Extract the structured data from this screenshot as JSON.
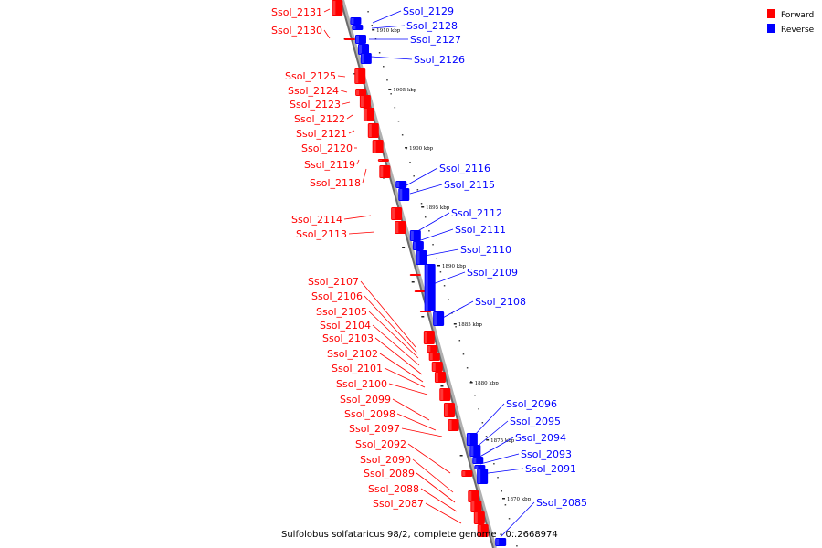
{
  "caption": "Sulfolobus solfataricus 98/2, complete genome - 0..2668974",
  "legend": [
    {
      "label": "Forward",
      "color": "#ff0000"
    },
    {
      "label": "Reverse",
      "color": "#0000ff"
    }
  ],
  "colors": {
    "forward": "#ff0000",
    "reverse": "#0000ff",
    "backbone": "#888888"
  },
  "scale_labels": [
    "1910 kbp",
    "1905 kbp",
    "1900 kbp",
    "1895 kbp",
    "1890 kbp",
    "1885 kbp",
    "1880 kbp",
    "1875 kbp",
    "1870 kbp"
  ],
  "forward_genes": [
    "Ssol_2131",
    "Ssol_2130",
    "Ssol_2125",
    "Ssol_2124",
    "Ssol_2123",
    "Ssol_2122",
    "Ssol_2121",
    "Ssol_2120",
    "Ssol_2119",
    "Ssol_2118",
    "Ssol_2114",
    "Ssol_2113",
    "Ssol_2107",
    "Ssol_2106",
    "Ssol_2105",
    "Ssol_2104",
    "Ssol_2103",
    "Ssol_2102",
    "Ssol_2101",
    "Ssol_2100",
    "Ssol_2099",
    "Ssol_2098",
    "Ssol_2097",
    "Ssol_2092",
    "Ssol_2090",
    "Ssol_2089",
    "Ssol_2088",
    "Ssol_2087"
  ],
  "reverse_genes": [
    "Ssol_2129",
    "Ssol_2128",
    "Ssol_2127",
    "Ssol_2126",
    "Ssol_2116",
    "Ssol_2115",
    "Ssol_2112",
    "Ssol_2111",
    "Ssol_2110",
    "Ssol_2109",
    "Ssol_2108",
    "Ssol_2096",
    "Ssol_2095",
    "Ssol_2094",
    "Ssol_2093",
    "Ssol_2091",
    "Ssol_2085"
  ]
}
